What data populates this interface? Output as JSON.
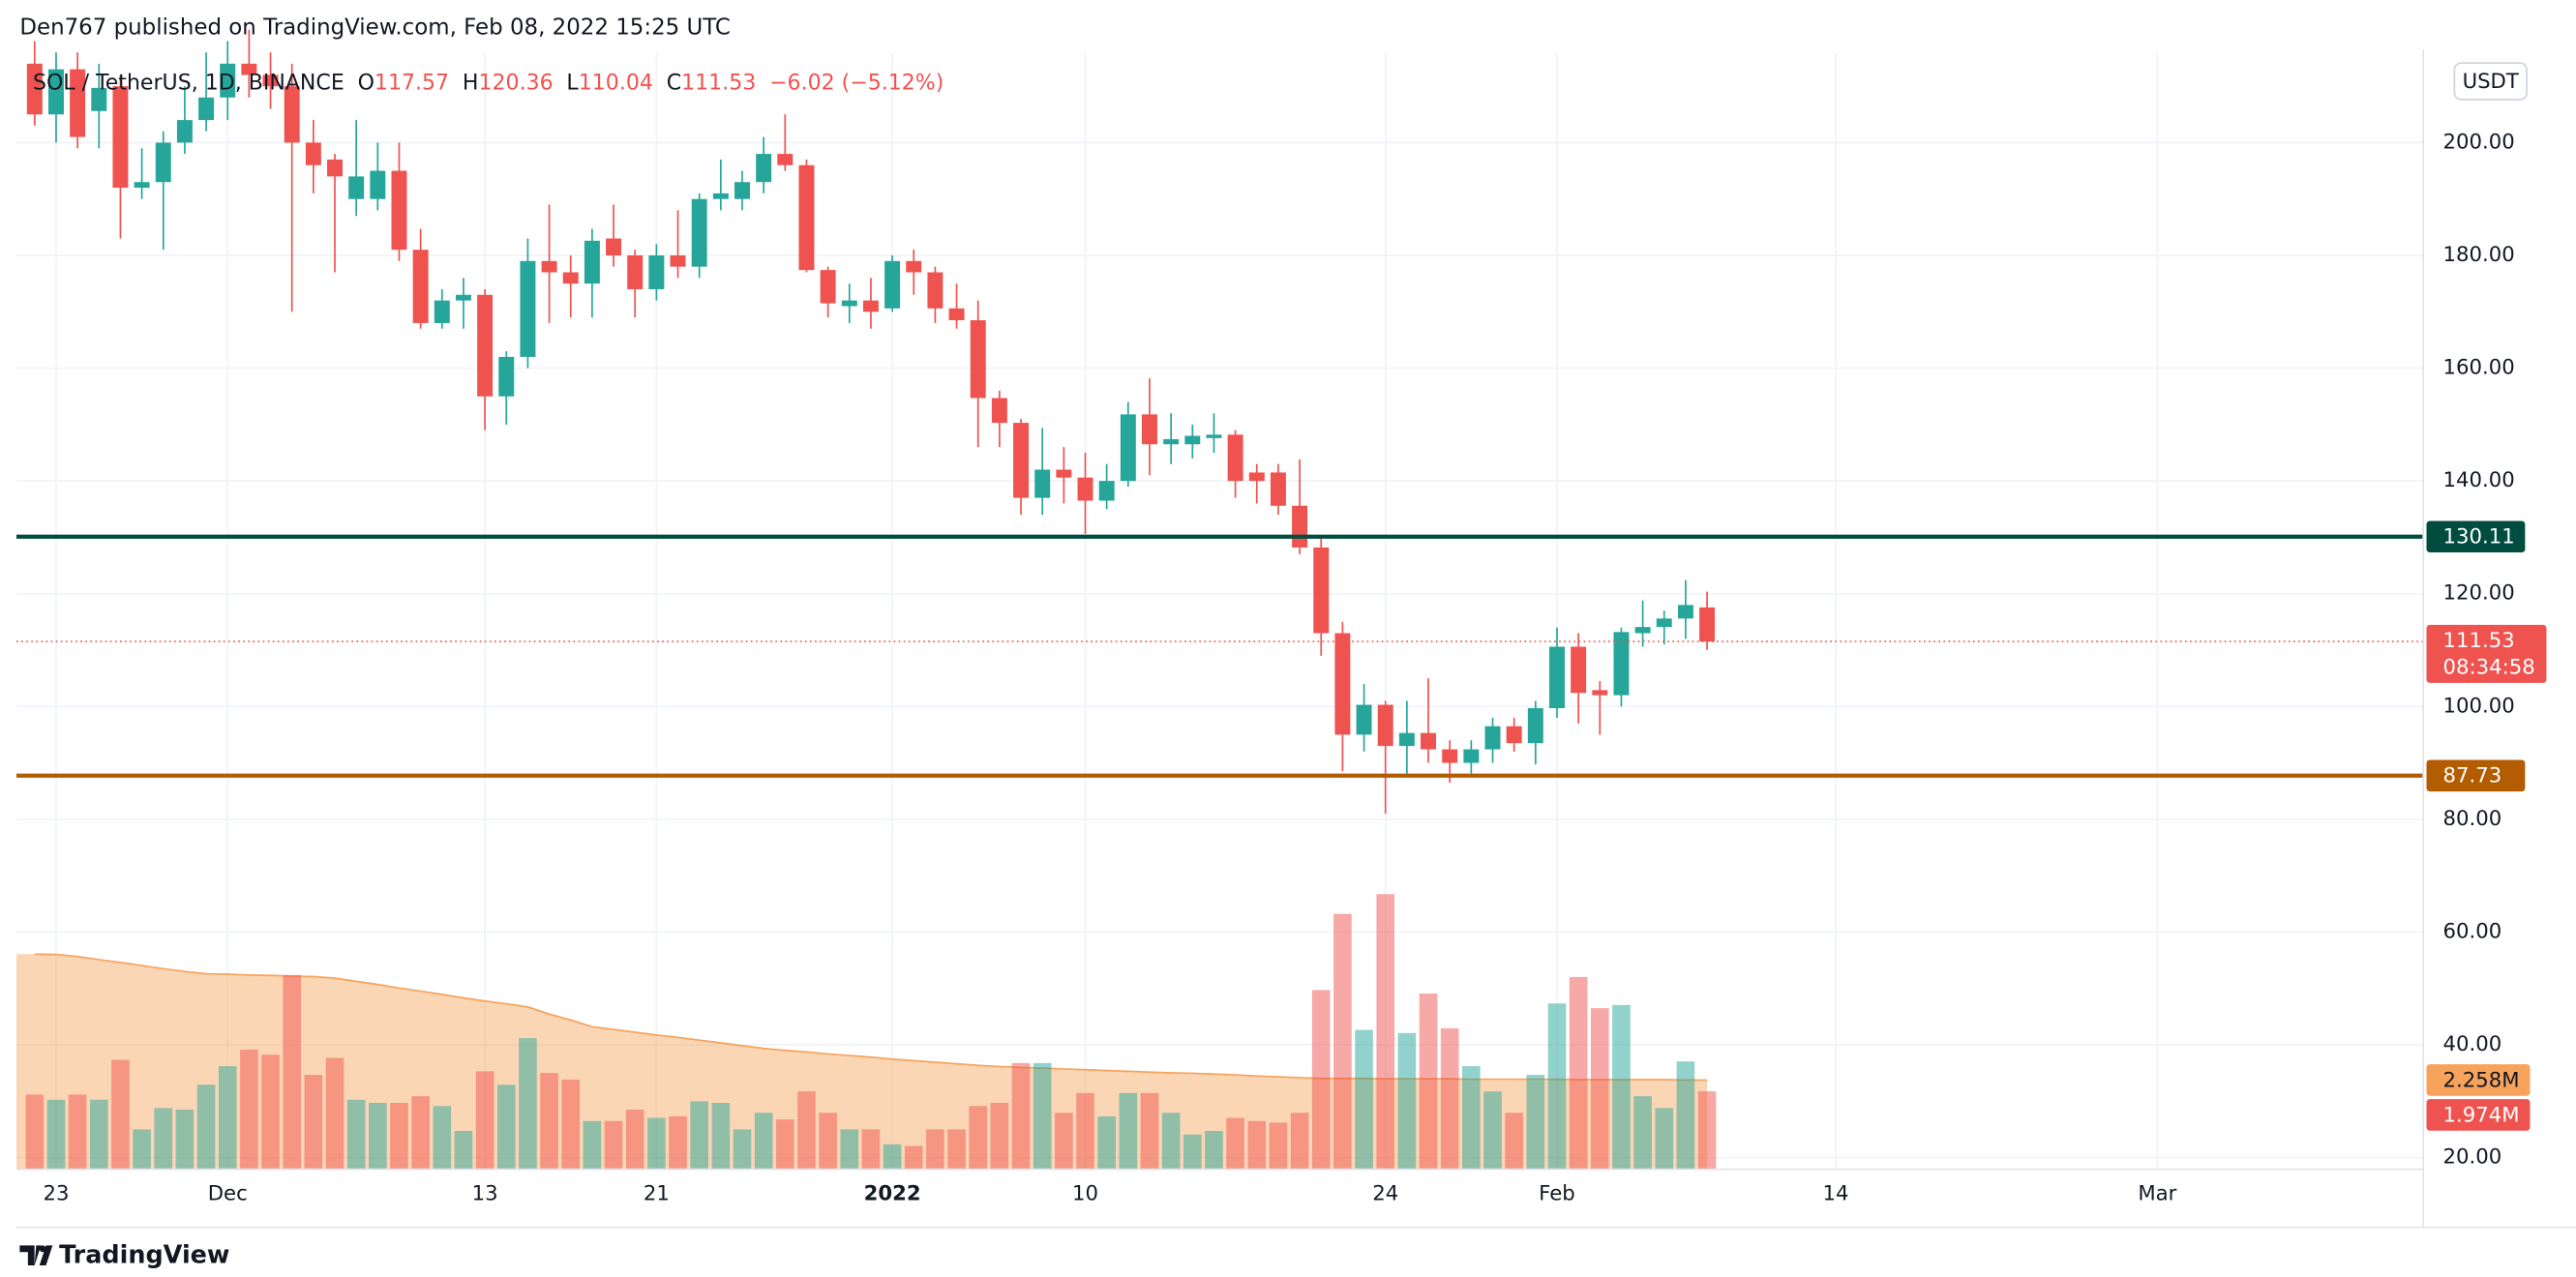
{
  "header": "Den767 published on TradingView.com, Feb 08, 2022 15:25 UTC",
  "footer": "TradingView",
  "chart_data": {
    "type": "candlestick",
    "legend": {
      "symbol": "SOL / TetherUS, 1D, BINANCE",
      "labels": [
        "O",
        "H",
        "L",
        "C"
      ],
      "change": "−6.02 (−5.12%)"
    },
    "currency": "USDT",
    "up_color": "#26a69a",
    "down_color": "#ef5350",
    "x": [
      0,
      1,
      2,
      3,
      4,
      5,
      6,
      7,
      8,
      9,
      10,
      11,
      12,
      13,
      14,
      15,
      16,
      17,
      18,
      19,
      20,
      21,
      22,
      23,
      24,
      25,
      26,
      27,
      28,
      29,
      30,
      31,
      32,
      33,
      34,
      35,
      36,
      37,
      38,
      39,
      40,
      41,
      42,
      43,
      44,
      45,
      46,
      47,
      48,
      49,
      50,
      51,
      52,
      53,
      54,
      55,
      56,
      57,
      58,
      59,
      60,
      61,
      62,
      63,
      64,
      65,
      66,
      67,
      68,
      69,
      70,
      71,
      72,
      73,
      74,
      75,
      76,
      77,
      78
    ],
    "open": [
      214,
      205,
      213,
      205.6,
      210,
      192,
      193,
      200,
      204,
      208,
      214,
      212,
      210,
      200,
      197,
      190,
      190,
      195,
      181,
      168,
      172,
      173,
      155,
      162,
      179,
      177,
      175,
      183,
      180,
      174,
      180,
      178,
      190,
      190,
      193,
      198,
      196,
      177.4,
      171,
      172,
      170.6,
      179,
      177,
      170.6,
      168.5,
      154.7,
      150.3,
      137,
      142,
      140.6,
      136.5,
      140,
      151.8,
      146.5,
      146.5,
      147.6,
      148.2,
      141.5,
      141.5,
      135.6,
      128.2,
      113,
      95,
      100.3,
      93,
      95.3,
      92.4,
      90,
      92.4,
      96.5,
      93.5,
      99.7,
      110.6,
      102.9,
      102,
      113,
      114.1,
      115.6,
      117.57
    ],
    "high": [
      218,
      216,
      216,
      214,
      212,
      199,
      202,
      210,
      216,
      218,
      220,
      216,
      214,
      204,
      198,
      204,
      200,
      200,
      184.7,
      174,
      176,
      174,
      163,
      183,
      189,
      180,
      184.7,
      189,
      181,
      182,
      188,
      191,
      197,
      195,
      201,
      205,
      197,
      178,
      175,
      176,
      180,
      181,
      178,
      175,
      172,
      156,
      151,
      149.4,
      146,
      145,
      143,
      154,
      158.2,
      152,
      150,
      152,
      149,
      143,
      143,
      143.8,
      130,
      115,
      104,
      101,
      101,
      105,
      94,
      94,
      98,
      98,
      101,
      114,
      113,
      104.5,
      114,
      118.8,
      117,
      122.4,
      120.36
    ],
    "low": [
      203,
      200,
      199,
      199,
      183,
      190,
      181,
      198,
      202,
      204,
      208,
      206,
      170,
      191,
      177,
      187,
      188,
      179,
      167,
      167,
      167,
      149,
      150,
      160,
      168,
      169,
      169,
      178,
      169,
      172,
      176,
      176,
      188,
      188,
      191,
      195,
      177,
      169,
      168,
      167,
      170,
      173,
      168,
      167,
      146,
      146,
      134,
      134,
      136,
      130.6,
      135,
      139,
      141,
      143,
      144,
      145,
      137,
      136,
      134,
      127,
      109,
      88.5,
      92,
      81,
      88,
      90,
      86.5,
      88,
      90,
      92,
      89.7,
      98,
      97,
      95,
      100,
      110.6,
      111,
      112,
      110.04
    ],
    "close": [
      205,
      213,
      201,
      209.7,
      192,
      193,
      200,
      204,
      208,
      214,
      212,
      210,
      200,
      196,
      194,
      194,
      195,
      181,
      168,
      172,
      173,
      155,
      162,
      179,
      177,
      175,
      182.6,
      180,
      174,
      180,
      178,
      190,
      191,
      193,
      198,
      196,
      177.4,
      171.5,
      172,
      170,
      179,
      177,
      170.6,
      168.5,
      154.7,
      150.3,
      137,
      142,
      140.6,
      136.5,
      140,
      151.8,
      146.5,
      147.4,
      148,
      148.2,
      140,
      140,
      135.6,
      128.2,
      113,
      95,
      100.3,
      93,
      95.3,
      92.4,
      90,
      92.4,
      96.5,
      93.5,
      99.7,
      110.6,
      102.4,
      102,
      113.2,
      114.1,
      115.6,
      118,
      111.53
    ],
    "xlim": [
      -0.85,
      111.4
    ],
    "xticks": [
      {
        "value": 1,
        "label": "23"
      },
      {
        "value": 9,
        "label": "Dec"
      },
      {
        "value": 21,
        "label": "13"
      },
      {
        "value": 29,
        "label": "21"
      },
      {
        "value": 40,
        "label": "2022"
      },
      {
        "value": 49,
        "label": "10"
      },
      {
        "value": 63,
        "label": "24"
      },
      {
        "value": 71,
        "label": "Feb"
      },
      {
        "value": 84,
        "label": "14"
      },
      {
        "value": 99,
        "label": "Mar"
      }
    ],
    "ylim": [
      17.94,
      215.88
    ],
    "yticks": [
      {
        "value": 20,
        "label": "20.00"
      },
      {
        "value": 40,
        "label": "40.00"
      },
      {
        "value": 60,
        "label": "60.00"
      },
      {
        "value": 80,
        "label": "80.00"
      },
      {
        "value": 100,
        "label": "100.00"
      },
      {
        "value": 120,
        "label": "120.00"
      },
      {
        "value": 140,
        "label": "140.00"
      },
      {
        "value": 160,
        "label": "160.00"
      },
      {
        "value": 180,
        "label": "180.00"
      },
      {
        "value": 200,
        "label": "200.00"
      }
    ],
    "grid": true,
    "y2lim": [
      0,
      28.28
    ],
    "volume": {
      "axis": "y2",
      "values": [
        1.89,
        1.76,
        1.89,
        1.76,
        2.77,
        1.01,
        1.55,
        1.51,
        2.14,
        2.61,
        3.03,
        2.9,
        4.92,
        2.39,
        2.82,
        1.76,
        1.68,
        1.68,
        1.85,
        1.6,
        0.97,
        2.48,
        2.14,
        3.32,
        2.44,
        2.27,
        1.22,
        1.22,
        1.51,
        1.3,
        1.34,
        1.72,
        1.68,
        1.01,
        1.43,
        1.26,
        1.97,
        1.43,
        1.01,
        1.01,
        0.63,
        0.59,
        1.01,
        1.01,
        1.6,
        1.68,
        2.69,
        2.69,
        1.43,
        1.93,
        1.34,
        1.93,
        1.93,
        1.43,
        0.88,
        0.97,
        1.3,
        1.22,
        1.18,
        1.43,
        4.54,
        6.47,
        3.53,
        6.97,
        3.45,
        4.45,
        3.57,
        2.61,
        1.97,
        1.43,
        2.39,
        4.2,
        4.87,
        4.08,
        4.16,
        1.85,
        1.55,
        2.73,
        1.974
      ],
      "last_label": "1.974M"
    },
    "volume_ma": {
      "axis": "y2",
      "color": "#f7a35c",
      "values": [
        5.45,
        5.44,
        5.39,
        5.31,
        5.24,
        5.16,
        5.08,
        5.01,
        4.95,
        4.94,
        4.92,
        4.91,
        4.89,
        4.88,
        4.84,
        4.76,
        4.68,
        4.59,
        4.51,
        4.43,
        4.34,
        4.26,
        4.19,
        4.11,
        3.93,
        3.78,
        3.61,
        3.54,
        3.47,
        3.4,
        3.34,
        3.27,
        3.2,
        3.13,
        3.06,
        3.01,
        2.97,
        2.92,
        2.88,
        2.84,
        2.79,
        2.75,
        2.71,
        2.67,
        2.63,
        2.6,
        2.58,
        2.56,
        2.54,
        2.52,
        2.5,
        2.48,
        2.46,
        2.44,
        2.43,
        2.41,
        2.39,
        2.36,
        2.34,
        2.32,
        2.3,
        2.3,
        2.3,
        2.29,
        2.29,
        2.29,
        2.29,
        2.28,
        2.28,
        2.28,
        2.28,
        2.28,
        2.27,
        2.27,
        2.27,
        2.27,
        2.27,
        2.26,
        2.258
      ],
      "last_label": "2.258M"
    },
    "hlines": [
      {
        "value": 130.11,
        "color": "#004d40"
      },
      {
        "value": 87.73,
        "color": "#b35c00"
      }
    ],
    "countdown": "08:34:58"
  }
}
